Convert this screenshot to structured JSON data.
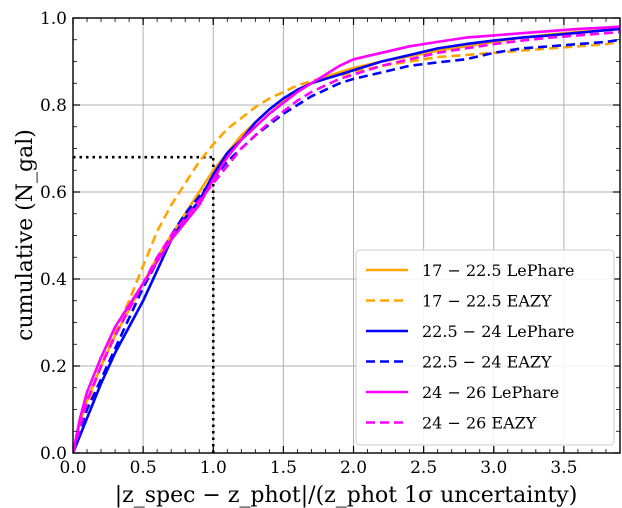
{
  "chart_data": {
    "type": "line",
    "xlabel": "|z_spec − z_phot|/(z_phot 1σ uncertainty)",
    "ylabel": "cumulative (N_gal)",
    "xlim": [
      0,
      3.9
    ],
    "ylim": [
      0,
      1.0
    ],
    "x_ticks": [
      "0.0",
      "0.5",
      "1.0",
      "1.5",
      "2.0",
      "2.5",
      "3.0",
      "3.5"
    ],
    "y_ticks": [
      "0.0",
      "0.2",
      "0.4",
      "0.6",
      "0.8",
      "1.0"
    ],
    "grid": true,
    "legend_position": "bottom-right",
    "reference_lines": [
      {
        "x": [
          0,
          1.0
        ],
        "y": [
          0.68,
          0.68
        ]
      },
      {
        "x": [
          1.0,
          1.0
        ],
        "y": [
          0,
          0.68
        ]
      }
    ],
    "series": [
      {
        "name": "17 − 22.5 LePhare",
        "color": "#ffa500",
        "style": "solid",
        "x": [
          0,
          0.05,
          0.1,
          0.2,
          0.3,
          0.4,
          0.5,
          0.6,
          0.7,
          0.8,
          0.9,
          1.0,
          1.1,
          1.2,
          1.3,
          1.4,
          1.5,
          1.6,
          1.7,
          1.8,
          1.9,
          2.0,
          2.2,
          2.4,
          2.6,
          2.8,
          3.0,
          3.2,
          3.4,
          3.6,
          3.8,
          3.9
        ],
        "y": [
          0,
          0.07,
          0.12,
          0.2,
          0.27,
          0.33,
          0.39,
          0.45,
          0.5,
          0.55,
          0.6,
          0.65,
          0.69,
          0.73,
          0.76,
          0.79,
          0.81,
          0.835,
          0.85,
          0.865,
          0.875,
          0.885,
          0.9,
          0.912,
          0.925,
          0.935,
          0.945,
          0.955,
          0.962,
          0.968,
          0.972,
          0.975
        ]
      },
      {
        "name": "17 − 22.5 EAZY",
        "color": "#ffa500",
        "style": "dashed",
        "x": [
          0,
          0.05,
          0.1,
          0.2,
          0.3,
          0.4,
          0.5,
          0.6,
          0.7,
          0.8,
          0.9,
          1.0,
          1.1,
          1.2,
          1.3,
          1.4,
          1.5,
          1.6,
          1.7,
          1.8,
          1.9,
          2.0,
          2.2,
          2.4,
          2.6,
          2.8,
          3.0,
          3.2,
          3.4,
          3.6,
          3.8,
          3.9
        ],
        "y": [
          0,
          0.06,
          0.11,
          0.2,
          0.28,
          0.35,
          0.43,
          0.51,
          0.57,
          0.62,
          0.67,
          0.71,
          0.745,
          0.77,
          0.795,
          0.815,
          0.83,
          0.845,
          0.855,
          0.862,
          0.868,
          0.875,
          0.89,
          0.9,
          0.91,
          0.915,
          0.92,
          0.925,
          0.93,
          0.935,
          0.94,
          0.945
        ]
      },
      {
        "name": "22.5 − 24 LePhare",
        "color": "#0000ff",
        "style": "solid",
        "x": [
          0,
          0.05,
          0.1,
          0.2,
          0.3,
          0.4,
          0.5,
          0.6,
          0.7,
          0.8,
          0.9,
          1.0,
          1.1,
          1.2,
          1.3,
          1.4,
          1.5,
          1.6,
          1.7,
          1.8,
          1.9,
          2.0,
          2.2,
          2.4,
          2.6,
          2.8,
          3.0,
          3.2,
          3.4,
          3.6,
          3.8,
          3.9
        ],
        "y": [
          0,
          0.04,
          0.08,
          0.16,
          0.23,
          0.29,
          0.35,
          0.42,
          0.49,
          0.54,
          0.58,
          0.64,
          0.69,
          0.72,
          0.76,
          0.79,
          0.815,
          0.835,
          0.85,
          0.86,
          0.87,
          0.88,
          0.9,
          0.915,
          0.93,
          0.94,
          0.948,
          0.955,
          0.96,
          0.966,
          0.972,
          0.975
        ]
      },
      {
        "name": "22.5 − 24 EAZY",
        "color": "#0000ff",
        "style": "dashed",
        "x": [
          0,
          0.05,
          0.1,
          0.2,
          0.3,
          0.4,
          0.5,
          0.6,
          0.7,
          0.8,
          0.9,
          1.0,
          1.1,
          1.2,
          1.3,
          1.4,
          1.5,
          1.6,
          1.7,
          1.8,
          1.9,
          2.0,
          2.2,
          2.4,
          2.6,
          2.8,
          3.0,
          3.2,
          3.4,
          3.6,
          3.8,
          3.9
        ],
        "y": [
          0,
          0.05,
          0.1,
          0.17,
          0.24,
          0.31,
          0.38,
          0.44,
          0.5,
          0.55,
          0.59,
          0.63,
          0.67,
          0.7,
          0.73,
          0.755,
          0.78,
          0.8,
          0.82,
          0.835,
          0.85,
          0.86,
          0.875,
          0.89,
          0.898,
          0.905,
          0.92,
          0.93,
          0.935,
          0.94,
          0.945,
          0.95
        ]
      },
      {
        "name": "24 − 26 LePhare",
        "color": "#ff00ff",
        "style": "solid",
        "x": [
          0,
          0.05,
          0.1,
          0.2,
          0.3,
          0.4,
          0.5,
          0.6,
          0.7,
          0.8,
          0.9,
          1.0,
          1.1,
          1.2,
          1.3,
          1.4,
          1.5,
          1.6,
          1.7,
          1.8,
          1.9,
          2.0,
          2.2,
          2.4,
          2.6,
          2.8,
          3.0,
          3.2,
          3.4,
          3.6,
          3.8,
          3.9
        ],
        "y": [
          0,
          0.08,
          0.14,
          0.22,
          0.29,
          0.34,
          0.39,
          0.44,
          0.49,
          0.53,
          0.57,
          0.63,
          0.68,
          0.72,
          0.75,
          0.78,
          0.805,
          0.83,
          0.85,
          0.87,
          0.89,
          0.905,
          0.92,
          0.935,
          0.945,
          0.955,
          0.96,
          0.965,
          0.97,
          0.975,
          0.978,
          0.98
        ]
      },
      {
        "name": "24 − 26 EAZY",
        "color": "#ff00ff",
        "style": "dashed",
        "x": [
          0,
          0.05,
          0.1,
          0.2,
          0.3,
          0.4,
          0.5,
          0.6,
          0.7,
          0.8,
          0.9,
          1.0,
          1.1,
          1.2,
          1.3,
          1.4,
          1.5,
          1.6,
          1.7,
          1.8,
          1.9,
          2.0,
          2.2,
          2.4,
          2.6,
          2.8,
          3.0,
          3.2,
          3.4,
          3.6,
          3.8,
          3.9
        ],
        "y": [
          0,
          0.06,
          0.12,
          0.2,
          0.27,
          0.33,
          0.39,
          0.45,
          0.5,
          0.54,
          0.58,
          0.62,
          0.66,
          0.7,
          0.73,
          0.76,
          0.785,
          0.81,
          0.83,
          0.845,
          0.86,
          0.87,
          0.89,
          0.905,
          0.92,
          0.93,
          0.94,
          0.948,
          0.955,
          0.96,
          0.965,
          0.968
        ]
      }
    ]
  }
}
